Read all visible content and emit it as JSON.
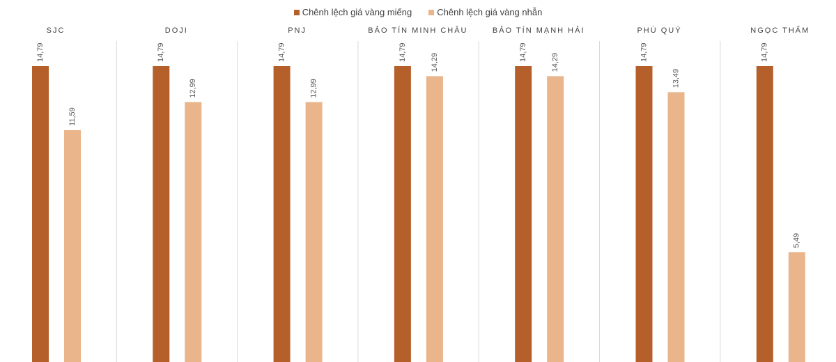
{
  "chart_data": {
    "type": "bar",
    "categories": [
      "SJC",
      "DOJI",
      "PNJ",
      "BẢO TÍN MINH CHÂU",
      "BẢO TÍN MẠNH HẢI",
      "PHÚ QUÝ",
      "NGỌC THẨM"
    ],
    "series": [
      {
        "name": "Chênh lệch giá vàng miếng",
        "color": "#B5602B",
        "values": [
          14.79,
          14.79,
          14.79,
          14.79,
          14.79,
          14.79,
          14.79
        ],
        "labels": [
          "14,79",
          "14,79",
          "14,79",
          "14,79",
          "14,79",
          "14,79",
          "14,79"
        ]
      },
      {
        "name": "Chênh lệch giá vàng nhẫn",
        "color": "#EAB58A",
        "values": [
          11.59,
          12.99,
          12.99,
          14.29,
          14.29,
          13.49,
          5.49
        ],
        "labels": [
          "11,59",
          "12,99",
          "12,99",
          "14,29",
          "14,29",
          "13,49",
          "5,49"
        ]
      }
    ],
    "legend": "top",
    "ylim": [
      0,
      14.79
    ],
    "grid": false,
    "title": "",
    "xlabel": "",
    "ylabel": ""
  }
}
